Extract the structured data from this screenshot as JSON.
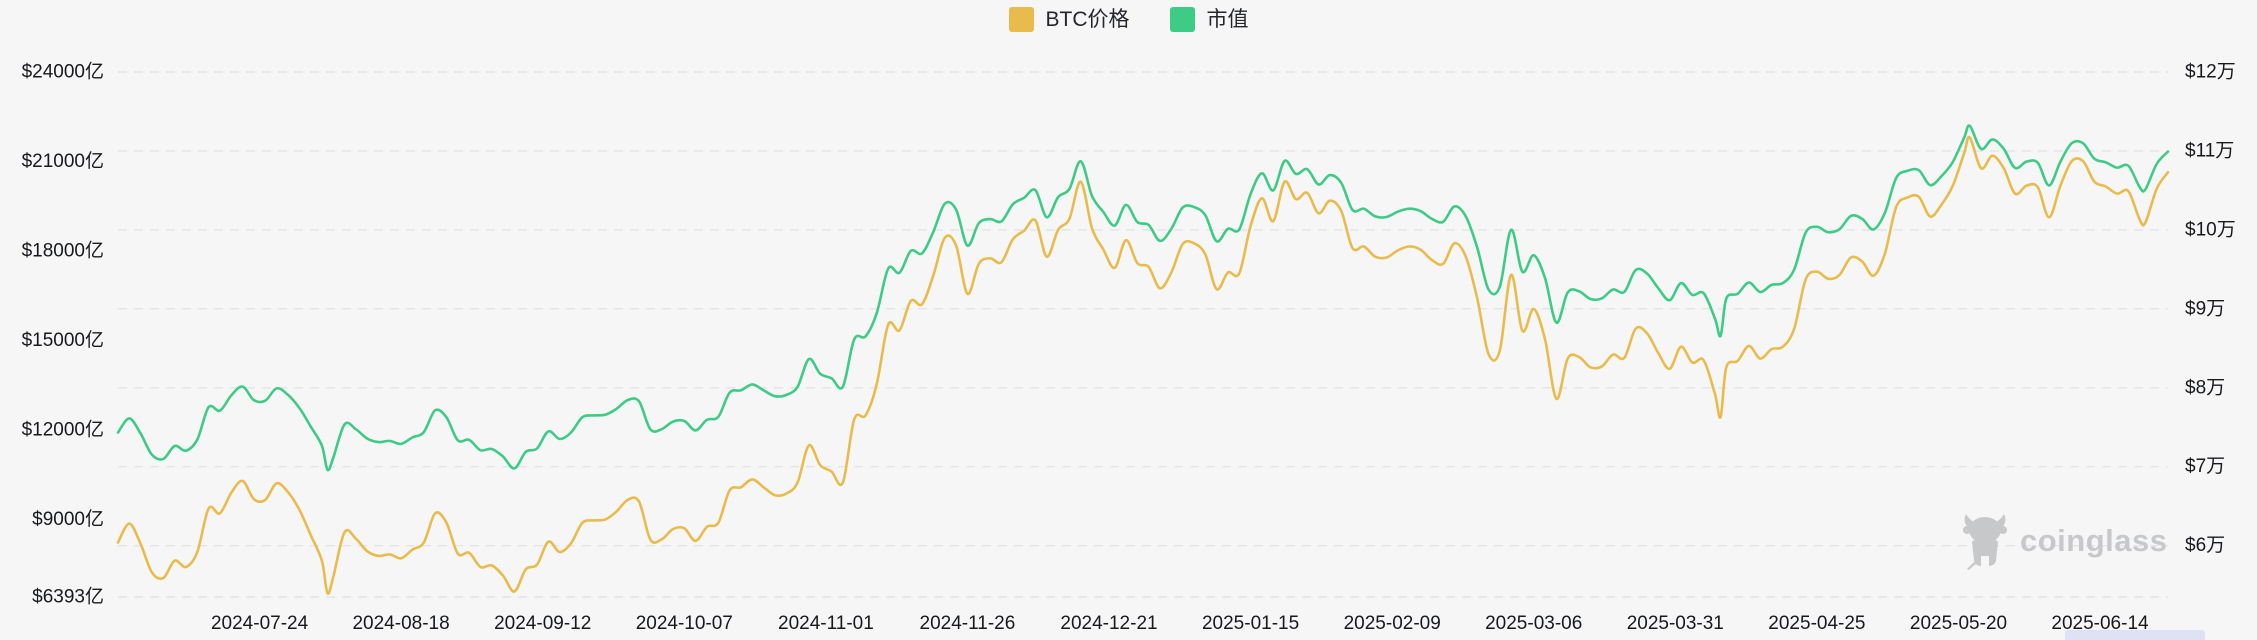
{
  "chart_data": {
    "type": "line",
    "title": "",
    "legend": [
      {
        "label": "BTC价格",
        "color": "#e9bb4d"
      },
      {
        "label": "市值",
        "color": "#3ecb85"
      }
    ],
    "watermark": "coinglass",
    "left_axis": {
      "unit": "亿",
      "min": 6393,
      "max": 24000,
      "tick_values": [
        24000,
        21000,
        18000,
        15000,
        12000,
        9000,
        6393
      ],
      "tick_labels": [
        "$24000亿",
        "$21000亿",
        "$18000亿",
        "$15000亿",
        "$12000亿",
        "$9000亿",
        "$6393亿"
      ]
    },
    "right_axis": {
      "unit": "万",
      "min": 5.35,
      "max": 12,
      "tick_values": [
        12,
        11,
        10,
        9,
        8,
        7,
        6
      ],
      "tick_labels": [
        "$12万",
        "$11万",
        "$10万",
        "$9万",
        "$8万",
        "$7万",
        "$6万"
      ]
    },
    "x_tick_labels": [
      "2024-07-24",
      "2024-08-18",
      "2024-09-12",
      "2024-10-07",
      "2024-11-01",
      "2024-11-26",
      "2024-12-21",
      "2025-01-15",
      "2025-02-09",
      "2025-03-06",
      "2025-03-31",
      "2025-04-25",
      "2025-05-20",
      "2025-06-14"
    ],
    "grid": {
      "horizontal": true,
      "vertical": false,
      "style": "dashed"
    },
    "dates": [
      "2024-06-29",
      "2024-07-01",
      "2024-07-03",
      "2024-07-05",
      "2024-07-07",
      "2024-07-09",
      "2024-07-11",
      "2024-07-13",
      "2024-07-15",
      "2024-07-17",
      "2024-07-19",
      "2024-07-21",
      "2024-07-23",
      "2024-07-25",
      "2024-07-27",
      "2024-07-29",
      "2024-07-31",
      "2024-08-02",
      "2024-08-04",
      "2024-08-05",
      "2024-08-06",
      "2024-08-08",
      "2024-08-10",
      "2024-08-12",
      "2024-08-14",
      "2024-08-16",
      "2024-08-18",
      "2024-08-20",
      "2024-08-22",
      "2024-08-24",
      "2024-08-26",
      "2024-08-28",
      "2024-08-30",
      "2024-09-01",
      "2024-09-03",
      "2024-09-05",
      "2024-09-07",
      "2024-09-09",
      "2024-09-11",
      "2024-09-13",
      "2024-09-15",
      "2024-09-17",
      "2024-09-19",
      "2024-09-21",
      "2024-09-23",
      "2024-09-25",
      "2024-09-27",
      "2024-09-29",
      "2024-10-01",
      "2024-10-03",
      "2024-10-05",
      "2024-10-07",
      "2024-10-09",
      "2024-10-11",
      "2024-10-13",
      "2024-10-15",
      "2024-10-17",
      "2024-10-19",
      "2024-10-21",
      "2024-10-23",
      "2024-10-25",
      "2024-10-27",
      "2024-10-29",
      "2024-10-31",
      "2024-11-02",
      "2024-11-04",
      "2024-11-06",
      "2024-11-08",
      "2024-11-10",
      "2024-11-12",
      "2024-11-14",
      "2024-11-16",
      "2024-11-18",
      "2024-11-20",
      "2024-11-22",
      "2024-11-24",
      "2024-11-26",
      "2024-11-28",
      "2024-11-30",
      "2024-12-02",
      "2024-12-04",
      "2024-12-06",
      "2024-12-08",
      "2024-12-10",
      "2024-12-12",
      "2024-12-14",
      "2024-12-16",
      "2024-12-18",
      "2024-12-20",
      "2024-12-22",
      "2024-12-24",
      "2024-12-26",
      "2024-12-28",
      "2024-12-30",
      "2025-01-01",
      "2025-01-03",
      "2025-01-05",
      "2025-01-07",
      "2025-01-09",
      "2025-01-11",
      "2025-01-13",
      "2025-01-15",
      "2025-01-17",
      "2025-01-19",
      "2025-01-21",
      "2025-01-23",
      "2025-01-25",
      "2025-01-27",
      "2025-01-29",
      "2025-01-31",
      "2025-02-02",
      "2025-02-04",
      "2025-02-06",
      "2025-02-08",
      "2025-02-10",
      "2025-02-12",
      "2025-02-14",
      "2025-02-16",
      "2025-02-18",
      "2025-02-20",
      "2025-02-22",
      "2025-02-24",
      "2025-02-26",
      "2025-02-28",
      "2025-03-02",
      "2025-03-04",
      "2025-03-06",
      "2025-03-08",
      "2025-03-10",
      "2025-03-12",
      "2025-03-14",
      "2025-03-16",
      "2025-03-18",
      "2025-03-20",
      "2025-03-22",
      "2025-03-24",
      "2025-03-26",
      "2025-03-28",
      "2025-03-30",
      "2025-04-01",
      "2025-04-03",
      "2025-04-05",
      "2025-04-07",
      "2025-04-08",
      "2025-04-09",
      "2025-04-11",
      "2025-04-13",
      "2025-04-15",
      "2025-04-17",
      "2025-04-19",
      "2025-04-21",
      "2025-04-23",
      "2025-04-25",
      "2025-04-27",
      "2025-04-29",
      "2025-05-01",
      "2025-05-03",
      "2025-05-05",
      "2025-05-07",
      "2025-05-09",
      "2025-05-11",
      "2025-05-13",
      "2025-05-15",
      "2025-05-17",
      "2025-05-19",
      "2025-05-21",
      "2025-05-22",
      "2025-05-24",
      "2025-05-26",
      "2025-05-28",
      "2025-05-30",
      "2025-06-01",
      "2025-06-03",
      "2025-06-05",
      "2025-06-07",
      "2025-06-09",
      "2025-06-11",
      "2025-06-13",
      "2025-06-15",
      "2025-06-17",
      "2025-06-19",
      "2025-06-21",
      "2025-06-22",
      "2025-06-24",
      "2025-06-26"
    ],
    "series": [
      {
        "name": "BTC价格",
        "axis": "right",
        "unit": "万美元",
        "color": "#e9bb4d",
        "values": [
          6.04,
          6.28,
          6.02,
          5.66,
          5.59,
          5.81,
          5.73,
          5.92,
          6.47,
          6.41,
          6.67,
          6.82,
          6.59,
          6.58,
          6.79,
          6.68,
          6.46,
          6.14,
          5.81,
          5.4,
          5.6,
          6.17,
          6.09,
          5.93,
          5.87,
          5.89,
          5.84,
          5.95,
          6.04,
          6.41,
          6.29,
          5.9,
          5.91,
          5.73,
          5.75,
          5.62,
          5.42,
          5.7,
          5.76,
          6.05,
          5.92,
          6.03,
          6.29,
          6.32,
          6.33,
          6.43,
          6.58,
          6.56,
          6.08,
          6.08,
          6.21,
          6.22,
          6.06,
          6.24,
          6.29,
          6.7,
          6.74,
          6.84,
          6.74,
          6.64,
          6.66,
          6.8,
          7.27,
          7.02,
          6.94,
          6.8,
          7.6,
          7.65,
          8.05,
          8.8,
          8.73,
          9.1,
          9.06,
          9.43,
          9.9,
          9.8,
          9.19,
          9.57,
          9.64,
          9.59,
          9.88,
          9.99,
          10.12,
          9.66,
          10.0,
          10.14,
          10.61,
          10.02,
          9.75,
          9.52,
          9.87,
          9.58,
          9.53,
          9.26,
          9.46,
          9.82,
          9.83,
          9.69,
          9.25,
          9.46,
          9.45,
          10.05,
          10.4,
          10.11,
          10.61,
          10.39,
          10.47,
          10.21,
          10.37,
          10.24,
          9.77,
          9.79,
          9.66,
          9.65,
          9.74,
          9.79,
          9.75,
          9.62,
          9.57,
          9.83,
          9.66,
          9.14,
          8.43,
          8.47,
          9.43,
          8.72,
          9.0,
          8.61,
          7.86,
          8.37,
          8.39,
          8.26,
          8.27,
          8.42,
          8.38,
          8.75,
          8.69,
          8.44,
          8.24,
          8.52,
          8.32,
          8.35,
          7.92,
          7.63,
          8.26,
          8.34,
          8.53,
          8.37,
          8.49,
          8.52,
          8.75,
          9.37,
          9.47,
          9.38,
          9.43,
          9.65,
          9.6,
          9.42,
          9.7,
          10.29,
          10.41,
          10.42,
          10.17,
          10.32,
          10.56,
          10.97,
          11.17,
          10.78,
          10.94,
          10.78,
          10.46,
          10.56,
          10.54,
          10.16,
          10.56,
          10.87,
          10.87,
          10.61,
          10.55,
          10.46,
          10.49,
          10.13,
          10.09,
          10.52,
          10.73
        ]
      },
      {
        "name": "市值",
        "axis": "left",
        "unit": "亿美元",
        "color": "#3ecb85",
        "values": [
          11911,
          12384,
          11871,
          11162,
          11023,
          11457,
          11300,
          11674,
          12759,
          12640,
          13153,
          13449,
          12996,
          12976,
          13390,
          13173,
          12739,
          12120,
          11469,
          10660,
          11054,
          12180,
          12022,
          11706,
          11587,
          11627,
          11528,
          11745,
          11923,
          12653,
          12416,
          11647,
          11666,
          11317,
          11356,
          11100,
          10705,
          11258,
          11376,
          11949,
          11692,
          11909,
          12423,
          12482,
          12502,
          12699,
          12996,
          12956,
          12020,
          12020,
          12277,
          12297,
          11981,
          12336,
          12435,
          13246,
          13325,
          13523,
          13325,
          13127,
          13167,
          13444,
          14373,
          13879,
          13727,
          13450,
          15033,
          15132,
          15923,
          17406,
          17268,
          18000,
          17921,
          18653,
          19582,
          19384,
          18178,
          18929,
          19068,
          18988,
          19562,
          19780,
          20038,
          19127,
          19800,
          20077,
          21008,
          19840,
          19305,
          18850,
          19543,
          18968,
          18869,
          18335,
          18740,
          19453,
          19473,
          19196,
          18324,
          18740,
          18720,
          19909,
          20602,
          20028,
          21018,
          20583,
          20741,
          20226,
          20543,
          20285,
          19374,
          19414,
          19156,
          19136,
          19314,
          19414,
          19334,
          19076,
          18977,
          19493,
          19156,
          18125,
          16717,
          16796,
          18709,
          17301,
          17856,
          17082,
          15594,
          16606,
          16646,
          16388,
          16408,
          16705,
          16626,
          17360,
          17241,
          16745,
          16348,
          16921,
          16524,
          16583,
          15729,
          15153,
          16404,
          16563,
          16941,
          16623,
          16861,
          16921,
          17378,
          18609,
          18807,
          18629,
          18728,
          19175,
          19075,
          18718,
          19274,
          20446,
          20685,
          20705,
          20208,
          20506,
          20983,
          21797,
          22195,
          21420,
          21738,
          21420,
          20784,
          20993,
          20954,
          20198,
          20993,
          21610,
          21610,
          21093,
          20973,
          20794,
          20854,
          20138,
          20059,
          20914,
          21331
        ]
      }
    ],
    "colors": {
      "background": "#f6f6f7",
      "gridline": "#e4e4e7",
      "axis_text": "#17191c",
      "watermark": "#c7c8ca",
      "datazoom_fragment": "#dee2f4"
    }
  }
}
